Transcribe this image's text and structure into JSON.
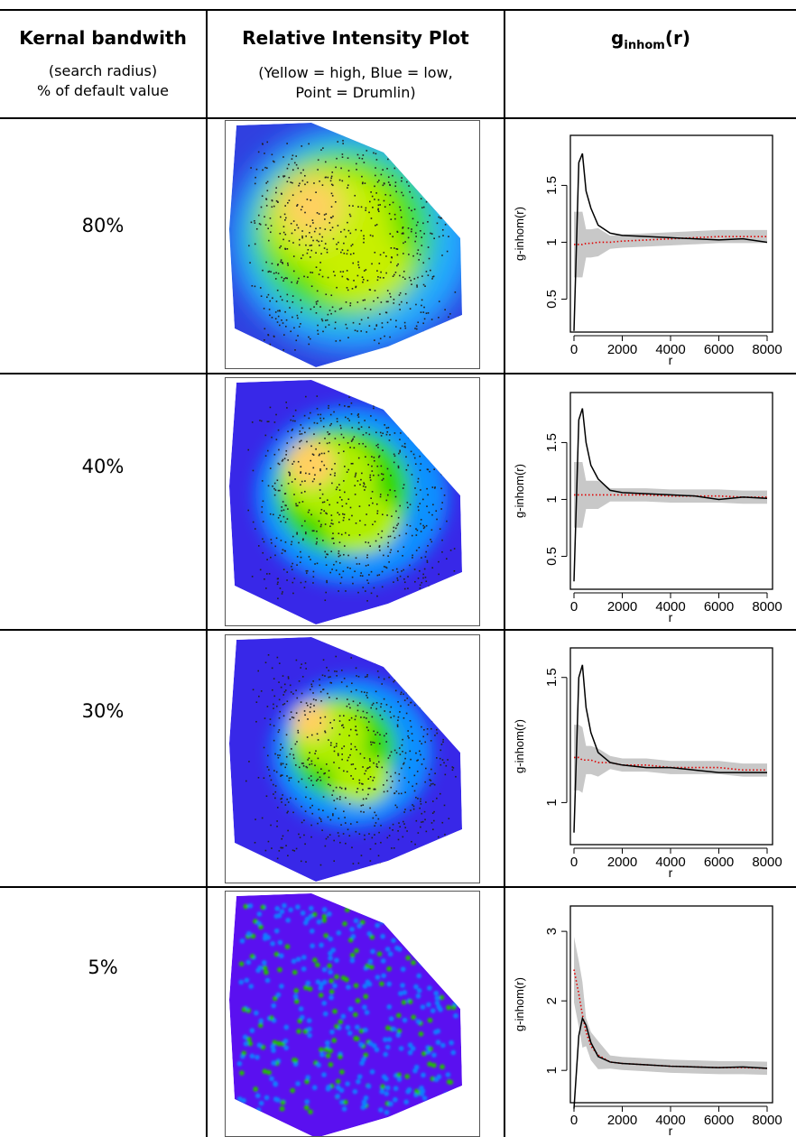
{
  "header": {
    "col1_title": "Kernal bandwith",
    "col1_sub1": "(search radius)",
    "col1_sub2": "% of default value",
    "col2_title": "Relative Intensity Plot",
    "col2_sub1": "(Yellow = high, Blue = low,",
    "col2_sub2": "Point = Drumlin)",
    "col3_title_main": "g",
    "col3_title_sub": "inhom",
    "col3_title_tail": "(r)"
  },
  "rows": [
    {
      "bandwidth": "80%",
      "map_colors": [
        "#3040e0",
        "#20a8ff",
        "#40e000",
        "#c8f000",
        "#ffd060"
      ],
      "plot": {
        "ylabel": "g-inhom(r)",
        "xlabel": "r",
        "xticks": [
          "0",
          "2000",
          "4000",
          "6000",
          "8000"
        ],
        "yticks": [
          "0.5",
          "1",
          "1.5"
        ],
        "yvals": [
          0.5,
          1,
          1.5
        ],
        "ylim": [
          0.25,
          1.9
        ]
      }
    },
    {
      "bandwidth": "40%",
      "map_colors": [
        "#3828e8",
        "#1090ff",
        "#30d800",
        "#b0ee00",
        "#ffd060"
      ],
      "plot": {
        "ylabel": "g-inhom(r)",
        "xlabel": "r",
        "xticks": [
          "0",
          "2000",
          "4000",
          "6000",
          "8000"
        ],
        "yticks": [
          "0.5",
          "1",
          "1.5"
        ],
        "yvals": [
          0.5,
          1,
          1.5
        ],
        "ylim": [
          0.25,
          1.9
        ]
      }
    },
    {
      "bandwidth": "30%",
      "map_colors": [
        "#3828e8",
        "#1090ff",
        "#30d800",
        "#b0ee00",
        "#ffd060"
      ],
      "plot": {
        "ylabel": "g-inhom(r)",
        "xlabel": "r",
        "xticks": [
          "0",
          "2000",
          "4000",
          "6000",
          "8000"
        ],
        "yticks": [
          "1",
          "1.5"
        ],
        "yvals": [
          1,
          1.5
        ],
        "ylim": [
          0.85,
          1.6
        ]
      }
    },
    {
      "bandwidth": "5%",
      "map_colors": [
        "#5a10f0",
        "#1080ff",
        "#20c000",
        "#b0ee00",
        "#ffd060"
      ],
      "plot": {
        "ylabel": "g-inhom(r)",
        "xlabel": "r",
        "xticks": [
          "0",
          "2000",
          "4000",
          "6000",
          "8000"
        ],
        "yticks": [
          "1",
          "2",
          "3"
        ],
        "yvals": [
          1,
          2,
          3
        ],
        "ylim": [
          0.6,
          3.3
        ]
      }
    }
  ],
  "chart_data": [
    {
      "type": "line",
      "x": [
        0,
        200,
        350,
        500,
        700,
        1000,
        1500,
        2000,
        3000,
        4000,
        5000,
        6000,
        7000,
        8000
      ],
      "series": [
        {
          "values": [
            0.22,
            1.7,
            1.78,
            1.45,
            1.3,
            1.15,
            1.08,
            1.06,
            1.05,
            1.04,
            1.03,
            1.02,
            1.03,
            1.0
          ]
        },
        {
          "values": [
            0.98,
            0.98,
            0.98,
            0.99,
            0.99,
            1.0,
            1.0,
            1.01,
            1.02,
            1.03,
            1.04,
            1.05,
            1.05,
            1.05
          ]
        }
      ],
      "xlim": [
        0,
        8000
      ],
      "ylim": [
        0.25,
        1.9
      ]
    },
    {
      "type": "line",
      "x": [
        0,
        200,
        350,
        500,
        700,
        1000,
        1500,
        2000,
        3000,
        4000,
        5000,
        6000,
        7000,
        8000
      ],
      "series": [
        {
          "values": [
            0.28,
            1.7,
            1.8,
            1.5,
            1.3,
            1.18,
            1.08,
            1.06,
            1.05,
            1.04,
            1.03,
            1.0,
            1.02,
            1.01
          ]
        },
        {
          "values": [
            1.04,
            1.04,
            1.04,
            1.04,
            1.04,
            1.04,
            1.04,
            1.04,
            1.04,
            1.03,
            1.03,
            1.03,
            1.02,
            1.02
          ]
        }
      ],
      "xlim": [
        0,
        8000
      ],
      "ylim": [
        0.25,
        1.9
      ]
    },
    {
      "type": "line",
      "x": [
        0,
        200,
        350,
        500,
        700,
        1000,
        1500,
        2000,
        3000,
        4000,
        5000,
        6000,
        7000,
        8000
      ],
      "series": [
        {
          "values": [
            0.88,
            1.5,
            1.55,
            1.38,
            1.28,
            1.2,
            1.16,
            1.15,
            1.14,
            1.14,
            1.13,
            1.12,
            1.12,
            1.12
          ]
        },
        {
          "values": [
            1.18,
            1.18,
            1.17,
            1.17,
            1.17,
            1.16,
            1.16,
            1.15,
            1.15,
            1.14,
            1.14,
            1.14,
            1.13,
            1.13
          ]
        }
      ],
      "xlim": [
        0,
        8000
      ],
      "ylim": [
        0.85,
        1.6
      ]
    },
    {
      "type": "line",
      "x": [
        0,
        200,
        350,
        500,
        700,
        1000,
        1500,
        2000,
        3000,
        4000,
        5000,
        6000,
        7000,
        8000
      ],
      "series": [
        {
          "values": [
            0.45,
            1.5,
            1.75,
            1.65,
            1.4,
            1.2,
            1.12,
            1.1,
            1.08,
            1.06,
            1.05,
            1.04,
            1.05,
            1.03
          ]
        },
        {
          "values": [
            2.45,
            2.1,
            1.8,
            1.55,
            1.35,
            1.22,
            1.12,
            1.1,
            1.08,
            1.06,
            1.05,
            1.04,
            1.04,
            1.03
          ]
        }
      ],
      "xlim": [
        0,
        8000
      ],
      "ylim": [
        0.6,
        3.3
      ]
    }
  ]
}
